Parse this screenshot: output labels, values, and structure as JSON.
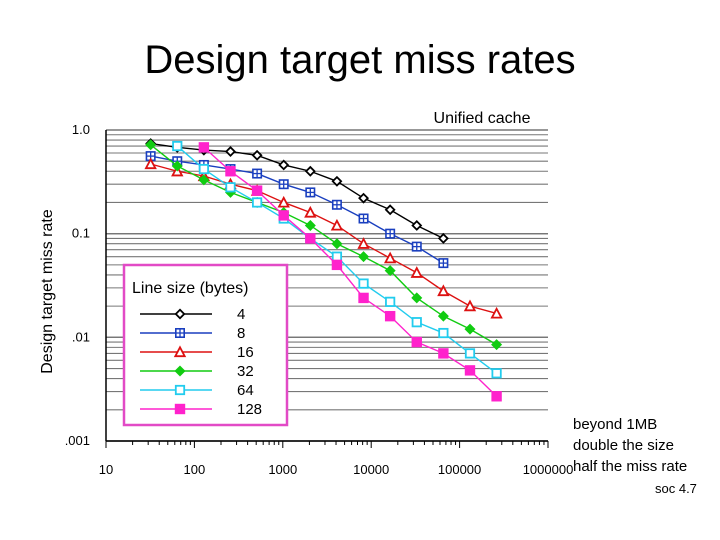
{
  "slide": {
    "title": "Design target miss rates",
    "note": [
      "beyond 1MB",
      "double the size",
      "half the miss rate"
    ],
    "footer": "soc 4.7"
  },
  "chart_data": {
    "type": "line",
    "title": "Unified cache",
    "ylabel": "Design target miss rate",
    "xlabel": "",
    "xscale": "log",
    "yscale": "log",
    "xlim": [
      10,
      1000000
    ],
    "ylim": [
      0.001,
      1.0
    ],
    "x_ticks": [
      "10",
      "100",
      "1000",
      "10000",
      "100000",
      "1000000"
    ],
    "y_ticks": [
      ".001",
      ".01",
      "0.1",
      "1.0"
    ],
    "grid": true,
    "legend_title": "Line size (bytes)",
    "legend_position": "lower-left",
    "x": [
      32,
      64,
      128,
      256,
      512,
      1024,
      2048,
      4096,
      8192,
      16384,
      32768,
      65536,
      131072,
      262144,
      524288
    ],
    "series": [
      {
        "name": "4",
        "color": "#000000",
        "marker": "diamond-open",
        "values": [
          0.74,
          0.68,
          0.64,
          0.62,
          0.57,
          0.46,
          0.4,
          0.32,
          0.22,
          0.17,
          0.12,
          0.09,
          null,
          null,
          null
        ]
      },
      {
        "name": "8",
        "color": "#1a3fbf",
        "marker": "square-plus",
        "values": [
          0.56,
          0.5,
          0.46,
          0.42,
          0.38,
          0.3,
          0.25,
          0.19,
          0.14,
          0.1,
          0.075,
          0.052,
          null,
          null,
          null
        ]
      },
      {
        "name": "16",
        "color": "#dd1111",
        "marker": "triangle-open",
        "values": [
          0.47,
          0.4,
          0.36,
          0.3,
          0.26,
          0.2,
          0.16,
          0.12,
          0.08,
          0.058,
          0.042,
          0.028,
          0.02,
          0.017,
          null
        ]
      },
      {
        "name": "32",
        "color": "#11cc11",
        "marker": "diamond-filled",
        "values": [
          0.72,
          0.45,
          0.33,
          0.25,
          0.2,
          0.16,
          0.12,
          0.08,
          0.06,
          0.044,
          0.024,
          0.016,
          0.012,
          0.0085,
          null
        ]
      },
      {
        "name": "64",
        "color": "#22ccee",
        "marker": "square-open",
        "values": [
          null,
          0.7,
          0.42,
          0.28,
          0.2,
          0.14,
          0.09,
          0.06,
          0.033,
          0.022,
          0.014,
          0.011,
          0.007,
          0.0045,
          null
        ]
      },
      {
        "name": "128",
        "color": "#ff22cc",
        "marker": "square-filled",
        "values": [
          null,
          null,
          0.68,
          0.4,
          0.26,
          0.15,
          0.09,
          0.05,
          0.024,
          0.016,
          0.009,
          0.007,
          0.0048,
          0.0027,
          null
        ]
      }
    ]
  }
}
